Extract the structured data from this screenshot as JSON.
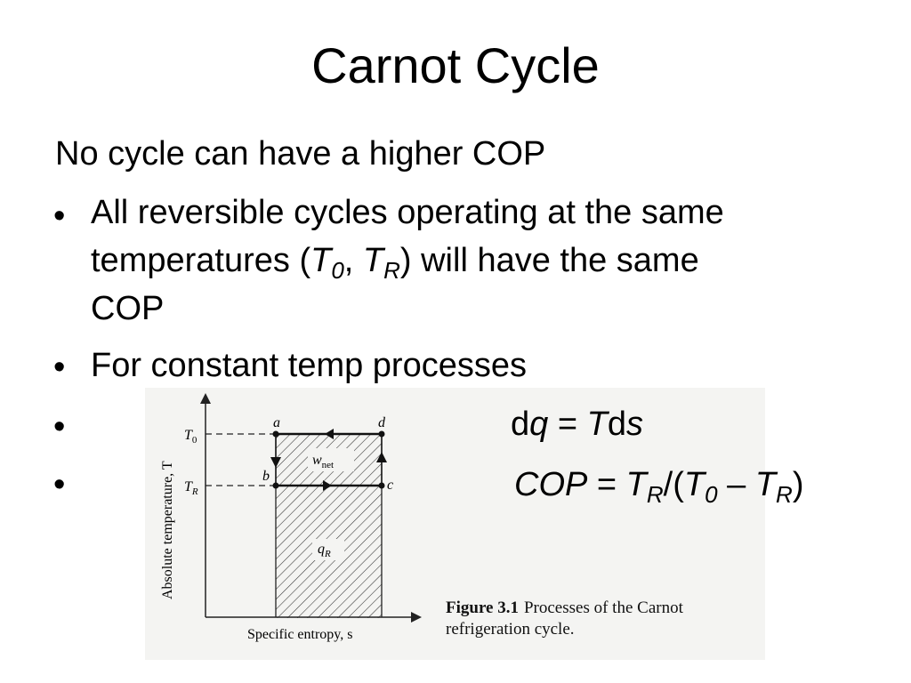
{
  "slide": {
    "title": "Carnot Cycle",
    "intro": "No cycle can have a higher COP"
  },
  "bullets": [
    {
      "marker": "•",
      "line1": "All reversible cycles operating at the same",
      "line2_before": "temperatures (",
      "t0_base": "T",
      "t0_sub": "0",
      "comma": ", ",
      "tr_base": "T",
      "tr_sub": "R",
      "line2_after": ") will have the same",
      "line3": "COP"
    },
    {
      "marker": "•",
      "text": "For constant temp processes"
    },
    {
      "marker": "•",
      "eq_d": "d",
      "eq_q": "q",
      "eq_equals": " = ",
      "eq_T": "T",
      "eq_ds": "d",
      "eq_s": "s"
    },
    {
      "marker": "•",
      "cop": "COP",
      "equals": " = ",
      "tr_base": "T",
      "tr_sub": "R",
      "slash_paren": "/(",
      "t0_base": "T",
      "t0_sub": "0",
      "minus": " – ",
      "tr2_base": "T",
      "tr2_sub": "R",
      "close": ")"
    }
  ],
  "figure": {
    "y_axis_label": "Absolute temperature, T",
    "x_axis_label": "Specific entropy, s",
    "t0_label": "T",
    "t0_sub": "0",
    "tr_label": "T",
    "tr_sub": "R",
    "point_a": "a",
    "point_b": "b",
    "point_c": "c",
    "point_d": "d",
    "wnet_main": "w",
    "wnet_sub": "net",
    "qr_main": "q",
    "qr_sub": "R",
    "caption_label": "Figure 3.1",
    "caption_text": "Processes of the Carnot refrigeration cycle."
  }
}
